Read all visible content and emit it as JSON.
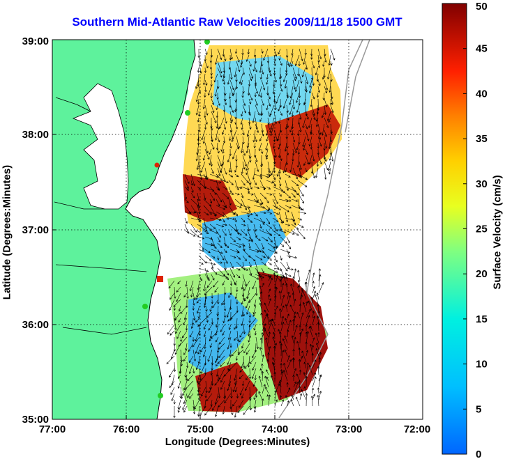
{
  "chart_data": {
    "type": "heatmap",
    "title": "Southern Mid-Atlantic Raw Velocities 2009/11/18 1500 GMT",
    "xlabel": "Longitude (Degrees:Minutes)",
    "ylabel": "Latitude (Degrees:Minutes)",
    "colorbar_label": "Surface Velocity (cm/s)",
    "x_ticks": [
      "77:00",
      "76:00",
      "75:00",
      "74:00",
      "73:00",
      "72:00"
    ],
    "y_ticks": [
      "35:00",
      "36:00",
      "37:00",
      "38:00",
      "39:00"
    ],
    "colorbar_ticks": [
      "0",
      "5",
      "10",
      "15",
      "20",
      "25",
      "30",
      "35",
      "40",
      "45",
      "50"
    ],
    "xlim": [
      -77,
      -72
    ],
    "ylim": [
      35,
      39
    ],
    "clim": [
      0,
      50
    ],
    "grid": true,
    "colors": {
      "land": "#5ef29c",
      "title": "#0000ff",
      "coast": "#000000"
    }
  }
}
